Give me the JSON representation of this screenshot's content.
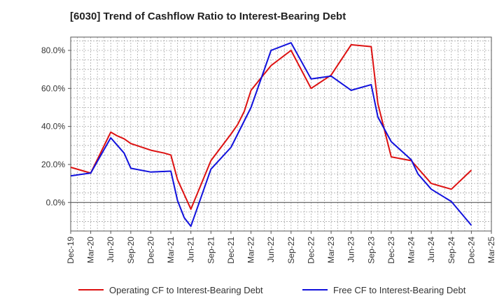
{
  "chart_data": {
    "type": "line",
    "title": "[6030]  Trend of Cashflow Ratio to Interest-Bearing Debt",
    "xlabel": "",
    "ylabel": "",
    "x_ticks": [
      "Dec-19",
      "Mar-20",
      "Jun-20",
      "Sep-20",
      "Dec-20",
      "Mar-21",
      "Jun-21",
      "Sep-21",
      "Dec-21",
      "Mar-22",
      "Jun-22",
      "Sep-22",
      "Dec-22",
      "Mar-23",
      "Jun-23",
      "Sep-23",
      "Dec-23",
      "Mar-24",
      "Jun-24",
      "Sep-24",
      "Dec-24",
      "Mar-25"
    ],
    "y_ticks": [
      "0.0%",
      "20.0%",
      "40.0%",
      "60.0%",
      "80.0%"
    ],
    "ylim": [
      -15,
      87
    ],
    "grid": true,
    "legend_position": "bottom",
    "series": [
      {
        "name": "Operating CF to Interest-Bearing Debt",
        "color": "#dd1111",
        "points": [
          [
            "Dec-19",
            18.5
          ],
          [
            "Feb-20",
            16.5
          ],
          [
            "Mar-20",
            15.5
          ],
          [
            "Jun-20",
            37.0
          ],
          [
            "Jul-20",
            35.0
          ],
          [
            "Aug-20",
            33.5
          ],
          [
            "Sep-20",
            31.0
          ],
          [
            "Dec-20",
            27.5
          ],
          [
            "Feb-21",
            26.0
          ],
          [
            "Mar-21",
            25.0
          ],
          [
            "Apr-21",
            12.0
          ],
          [
            "Jun-21",
            -3.5
          ],
          [
            "Sep-21",
            22.0
          ],
          [
            "Dec-21",
            36.0
          ],
          [
            "Jan-22",
            41.0
          ],
          [
            "Feb-22",
            48.0
          ],
          [
            "Mar-22",
            59.0
          ],
          [
            "Jun-22",
            72.0
          ],
          [
            "Sep-22",
            80.0
          ],
          [
            "Dec-22",
            60.0
          ],
          [
            "Mar-23",
            67.0
          ],
          [
            "Jun-23",
            83.0
          ],
          [
            "Sep-23",
            82.0
          ],
          [
            "Oct-23",
            52.0
          ],
          [
            "Dec-23",
            24.0
          ],
          [
            "Mar-24",
            22.0
          ],
          [
            "Jun-24",
            10.0
          ],
          [
            "Sep-24",
            7.0
          ],
          [
            "Dec-24",
            17.0
          ]
        ]
      },
      {
        "name": "Free CF to Interest-Bearing Debt",
        "color": "#1111dd",
        "points": [
          [
            "Dec-19",
            14.0
          ],
          [
            "Mar-20",
            15.5
          ],
          [
            "Jun-20",
            34.0
          ],
          [
            "Aug-20",
            26.0
          ],
          [
            "Sep-20",
            18.0
          ],
          [
            "Dec-20",
            16.0
          ],
          [
            "Mar-21",
            16.5
          ],
          [
            "Apr-21",
            1.0
          ],
          [
            "May-21",
            -8.0
          ],
          [
            "Jun-21",
            -12.5
          ],
          [
            "Sep-21",
            17.5
          ],
          [
            "Dec-21",
            29.0
          ],
          [
            "Mar-22",
            50.0
          ],
          [
            "Jun-22",
            80.0
          ],
          [
            "Sep-22",
            84.0
          ],
          [
            "Dec-22",
            65.0
          ],
          [
            "Mar-23",
            66.5
          ],
          [
            "Jun-23",
            59.0
          ],
          [
            "Sep-23",
            62.0
          ],
          [
            "Oct-23",
            45.0
          ],
          [
            "Dec-23",
            32.0
          ],
          [
            "Mar-24",
            22.5
          ],
          [
            "Apr-24",
            15.0
          ],
          [
            "Jun-24",
            7.0
          ],
          [
            "Sep-24",
            0.5
          ],
          [
            "Dec-24",
            -12.0
          ]
        ]
      }
    ]
  }
}
